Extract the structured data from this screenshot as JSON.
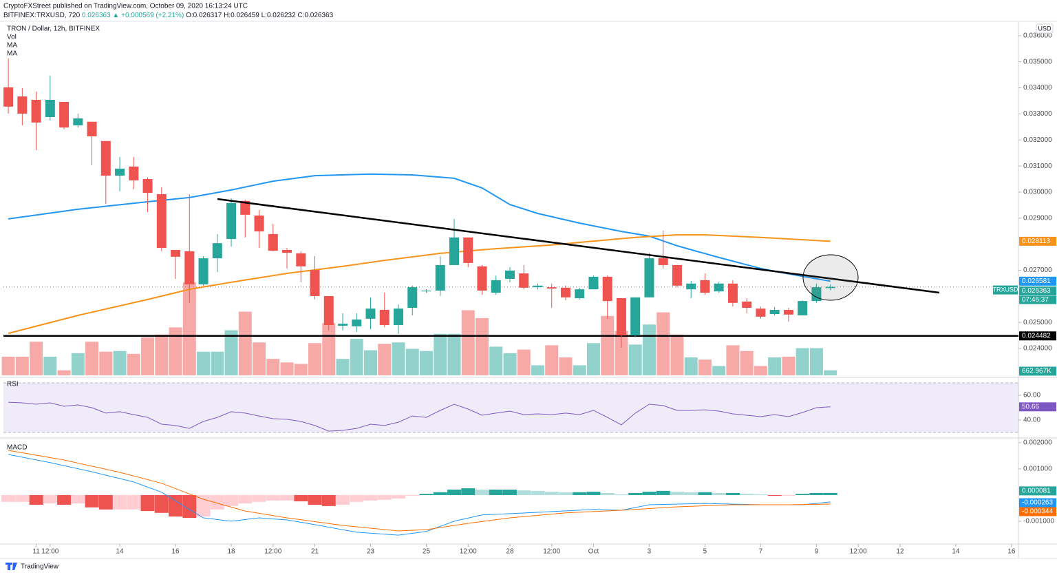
{
  "header": {
    "line1": "CryptoFXStreet published on TradingView.com, October 09, 2020 16:13:24 UTC",
    "symbol": "BITFINEX:TRXUSD, 720",
    "change": "▲ +0.000569 (+2.21%)",
    "ohlc_labels": [
      "O:",
      "H:",
      "L:",
      "C:"
    ]
  },
  "chart_data": {
    "type": "candlestick",
    "title": "TRON / Dollar, 12h, BITFINEX",
    "currency": "USD",
    "symbol_badge": "TRXUSD",
    "countdown": "07:46:37",
    "up_color": "#26a69a",
    "down_color": "#ef5350",
    "xlim": [
      -0.35,
      72.5
    ],
    "xticks": [
      {
        "value": 2,
        "label": "11"
      },
      {
        "value": 3,
        "label": "12:00"
      },
      {
        "value": 8,
        "label": "14"
      },
      {
        "value": 12,
        "label": "16"
      },
      {
        "value": 16,
        "label": "18"
      },
      {
        "value": 19,
        "label": "12:00"
      },
      {
        "value": 22,
        "label": "21"
      },
      {
        "value": 26,
        "label": "23"
      },
      {
        "value": 30,
        "label": "25"
      },
      {
        "value": 33,
        "label": "12:00"
      },
      {
        "value": 36,
        "label": "28"
      },
      {
        "value": 39,
        "label": "12:00"
      },
      {
        "value": 42,
        "label": "Oct"
      },
      {
        "value": 46,
        "label": "3"
      },
      {
        "value": 50,
        "label": "5"
      },
      {
        "value": 54,
        "label": "7"
      },
      {
        "value": 58,
        "label": "9"
      },
      {
        "value": 61,
        "label": "12:00"
      },
      {
        "value": 64,
        "label": "12"
      },
      {
        "value": 68,
        "label": "14"
      },
      {
        "value": 72,
        "label": "16"
      }
    ],
    "ylim": [
      0.02297,
      0.03642
    ],
    "yticks": [
      {
        "value": 0.036,
        "label": "0.036000"
      },
      {
        "value": 0.035,
        "label": "0.035000"
      },
      {
        "value": 0.034,
        "label": "0.034000"
      },
      {
        "value": 0.033,
        "label": "0.033000"
      },
      {
        "value": 0.032,
        "label": "0.032000"
      },
      {
        "value": 0.031,
        "label": "0.031000"
      },
      {
        "value": 0.03,
        "label": "0.030000"
      },
      {
        "value": 0.029,
        "label": "0.029000"
      },
      {
        "value": 0.027,
        "label": "0.027000"
      },
      {
        "value": 0.025,
        "label": "0.025000"
      },
      {
        "value": 0.024,
        "label": "0.024000"
      }
    ],
    "open": [
      0.03402,
      0.03367,
      0.03354,
      0.03288,
      0.03346,
      0.03256,
      0.0327,
      0.03196,
      0.03063,
      0.03098,
      0.0305,
      0.02992,
      0.02778,
      0.02773,
      0.02646,
      0.02746,
      0.0282,
      0.02966,
      0.0291,
      0.02839,
      0.02778,
      0.02765,
      0.02701,
      0.02601,
      0.02487,
      0.02485,
      0.02514,
      0.02548,
      0.0249,
      0.02556,
      0.02619,
      0.02622,
      0.0272,
      0.02826,
      0.02715,
      0.02614,
      0.02667,
      0.02688,
      0.02635,
      0.02635,
      0.02633,
      0.02593,
      0.02627,
      0.02675,
      0.02593,
      0.0245,
      0.02596,
      0.02746,
      0.0272,
      0.02627,
      0.02662,
      0.02619,
      0.02649,
      0.0258,
      0.02553,
      0.02532,
      0.02548,
      0.02527,
      0.02582,
      0.026317
    ],
    "high": [
      0.03513,
      0.03399,
      0.03386,
      0.03447,
      0.03346,
      0.03301,
      0.0327,
      0.03196,
      0.03135,
      0.03135,
      0.03056,
      0.03019,
      0.02778,
      0.02992,
      0.02754,
      0.02839,
      0.02976,
      0.02971,
      0.02931,
      0.02878,
      0.02786,
      0.02773,
      0.02754,
      0.02601,
      0.02535,
      0.02535,
      0.02596,
      0.02614,
      0.02569,
      0.02641,
      0.02627,
      0.02754,
      0.02897,
      0.02826,
      0.0272,
      0.0268,
      0.02712,
      0.0272,
      0.02649,
      0.02649,
      0.02641,
      0.02633,
      0.0268,
      0.0268,
      0.02593,
      0.02596,
      0.02767,
      0.02852,
      0.0272,
      0.02659,
      0.02688,
      0.02654,
      0.02662,
      0.02593,
      0.02561,
      0.02559,
      0.02556,
      0.02585,
      0.02649,
      0.026459
    ],
    "low": [
      0.03301,
      0.03256,
      0.03161,
      0.03275,
      0.03241,
      0.03248,
      0.03103,
      0.02955,
      0.03003,
      0.03011,
      0.02923,
      0.02773,
      0.02667,
      0.02575,
      0.02641,
      0.02693,
      0.02791,
      0.02826,
      0.02786,
      0.02773,
      0.02707,
      0.02654,
      0.02588,
      0.02469,
      0.02469,
      0.02463,
      0.02474,
      0.02482,
      0.02456,
      0.02527,
      0.02614,
      0.02601,
      0.0272,
      0.02712,
      0.02606,
      0.02606,
      0.02654,
      0.02627,
      0.02627,
      0.02556,
      0.02585,
      0.02588,
      0.02627,
      0.02514,
      0.02403,
      0.02442,
      0.02596,
      0.02707,
      0.02633,
      0.02593,
      0.02606,
      0.02614,
      0.02561,
      0.02535,
      0.02514,
      0.02527,
      0.02503,
      0.02527,
      0.02575,
      0.026232
    ],
    "close": [
      0.03328,
      0.03301,
      0.03267,
      0.03354,
      0.03248,
      0.03283,
      0.03214,
      0.03063,
      0.0309,
      0.03045,
      0.02997,
      0.02786,
      0.02752,
      0.02646,
      0.02746,
      0.02804,
      0.02958,
      0.02913,
      0.02849,
      0.02775,
      0.02767,
      0.02715,
      0.02601,
      0.0249,
      0.02495,
      0.02511,
      0.02553,
      0.0249,
      0.02553,
      0.02635,
      0.02622,
      0.0272,
      0.02826,
      0.02728,
      0.02622,
      0.02662,
      0.02699,
      0.02633,
      0.02641,
      0.0263,
      0.02596,
      0.02627,
      0.02675,
      0.02582,
      0.0245,
      0.02596,
      0.02746,
      0.0272,
      0.02641,
      0.02649,
      0.02614,
      0.02649,
      0.02575,
      0.02556,
      0.02522,
      0.02548,
      0.0253,
      0.02582,
      0.02635,
      0.026363
    ],
    "hline": {
      "value": 0.024482,
      "color": "#000000"
    },
    "ma": [
      {
        "name": "MA",
        "color": "#2196f3",
        "x": [
          0,
          5,
          10,
          13,
          16,
          19,
          22,
          26,
          29,
          32,
          34,
          36,
          38,
          41,
          44,
          46,
          48,
          51,
          54,
          56,
          59
        ],
        "values": [
          0.02897,
          0.02934,
          0.02963,
          0.02979,
          0.03008,
          0.03042,
          0.03063,
          0.03069,
          0.03066,
          0.03053,
          0.03016,
          0.02952,
          0.02918,
          0.02881,
          0.02849,
          0.02831,
          0.02794,
          0.02749,
          0.02707,
          0.02686,
          0.026581
        ]
      },
      {
        "name": "MA",
        "color": "#f7931a",
        "x": [
          0,
          5,
          10,
          13,
          16,
          20,
          24,
          27,
          31,
          35,
          39,
          42,
          45,
          48,
          50,
          54,
          59
        ],
        "values": [
          0.02458,
          0.02527,
          0.02588,
          0.02627,
          0.02654,
          0.02688,
          0.02715,
          0.02738,
          0.02765,
          0.02783,
          0.02797,
          0.02812,
          0.02826,
          0.02836,
          0.02836,
          0.02826,
          0.028113
        ]
      }
    ],
    "volume": {
      "name": "Vol",
      "values": [
        2470000,
        2470000,
        4465000,
        2470000,
        665000,
        2945000,
        4465000,
        3135000,
        3230000,
        2850000,
        5035000,
        5415000,
        6365000,
        12350000,
        3135000,
        3135000,
        5985000,
        8455000,
        4370000,
        2185000,
        1710000,
        1520000,
        4275000,
        6935000,
        2185000,
        4845000,
        3325000,
        4180000,
        4370000,
        3515000,
        3230000,
        5510000,
        5510000,
        8645000,
        7600000,
        3800000,
        2945000,
        3420000,
        1330000,
        3990000,
        2375000,
        1330000,
        4275000,
        7885000,
        5890000,
        4085000,
        6745000,
        8360000,
        5415000,
        2375000,
        2090000,
        1235000,
        3990000,
        3230000,
        1235000,
        2375000,
        2470000,
        3610000,
        3610000,
        662967
      ],
      "value_labels": [
        null,
        null,
        null,
        null,
        null,
        null,
        null,
        null,
        null,
        null,
        null,
        null,
        null,
        null,
        null,
        null,
        null,
        null,
        null,
        null,
        null,
        null,
        null,
        null,
        null,
        null,
        null,
        null,
        null,
        null,
        null,
        null,
        null,
        null,
        null,
        null,
        null,
        null,
        null,
        null,
        null,
        null,
        null,
        null,
        null,
        null,
        null,
        null,
        null,
        null,
        null,
        null,
        null,
        null,
        null,
        null,
        null,
        null,
        null,
        "662.967K"
      ]
    },
    "rsi": {
      "name": "RSI",
      "color": "#7e57c2",
      "ylim": [
        27.8,
        72.2
      ],
      "band": [
        30,
        70
      ],
      "yticks": [
        {
          "value": 60,
          "label": "60.00"
        },
        {
          "value": 40,
          "label": "40.00"
        }
      ],
      "values": [
        54.4,
        53.9,
        52.8,
        53.9,
        51.1,
        52.2,
        50,
        45.6,
        46.7,
        44.4,
        42.2,
        36.7,
        35.6,
        33.3,
        38.9,
        42.2,
        46.7,
        45.6,
        43.3,
        41.1,
        40.6,
        38.9,
        35.6,
        31.1,
        31.7,
        33.3,
        36.7,
        35.6,
        38.3,
        43.3,
        42.2,
        47.8,
        52.8,
        48.9,
        43.9,
        45.6,
        47.2,
        44.4,
        45,
        44.4,
        45.6,
        44.4,
        47.8,
        42.2,
        36.1,
        45.6,
        52.8,
        51.7,
        47.8,
        47.8,
        48.3,
        47.2,
        45,
        43.9,
        42.8,
        44.4,
        42.8,
        46.1,
        50,
        50.66
      ]
    },
    "macd": {
      "name": "MACD",
      "ylim": [
        -0.00187,
        0.00213
      ],
      "yticks": [
        {
          "value": 0.002,
          "label": "0.002000"
        },
        {
          "value": 0.001,
          "label": "0.001000"
        },
        {
          "value": -0.001,
          "label": "-0.001000"
        }
      ],
      "colors": {
        "up": "#26a69a",
        "up_weak": "#b2dfdb",
        "down": "#ef5350",
        "down_weak": "#ffcdd2"
      },
      "histogram": [
        -0.00026,
        -0.00026,
        -0.00037,
        -0.00032,
        -0.00037,
        -0.00032,
        -0.00047,
        -0.00055,
        -0.00055,
        -0.00055,
        -0.00061,
        -0.00068,
        -0.00082,
        -0.00087,
        -0.00082,
        -0.00055,
        -0.00042,
        -0.00032,
        -0.00026,
        -0.00021,
        -0.00021,
        -0.00024,
        -0.00037,
        -0.00042,
        -0.00037,
        -0.00026,
        -0.00021,
        -0.00018,
        -0.00013,
        -3e-05,
        5e-05,
        0.00011,
        0.00021,
        0.00026,
        0.00021,
        0.00021,
        0.00021,
        0.00018,
        0.00016,
        0.00013,
        0.00011,
        0.00011,
        0.00013,
        8e-05,
        3e-05,
        8e-05,
        0.00013,
        0.00016,
        0.00013,
        0.00011,
        0.00011,
        8e-05,
        8e-05,
        5e-05,
        3e-05,
        -3e-05,
        -3e-05,
        5e-05,
        8e-05,
        8.1e-05
      ],
      "macd": {
        "color": "#2196f3",
        "x": [
          0,
          3,
          6,
          9,
          11,
          13,
          14,
          16,
          18,
          20,
          22,
          25,
          28,
          30,
          32,
          34,
          38,
          42,
          44,
          46,
          50,
          54,
          57,
          59
        ],
        "values": [
          0.00155,
          0.00124,
          0.00089,
          0.0005,
          0.00011,
          -0.00055,
          -0.00087,
          -0.001,
          -0.00087,
          -0.00095,
          -0.00113,
          -0.00142,
          -0.00153,
          -0.00139,
          -0.001,
          -0.00076,
          -0.00066,
          -0.00055,
          -0.00058,
          -0.00037,
          -0.00032,
          -0.00037,
          -0.00037,
          -0.000263
        ]
      },
      "signal": {
        "color": "#ff6d00",
        "x": [
          0,
          4,
          8,
          11,
          14,
          17,
          20,
          24,
          28,
          30,
          33,
          36,
          40,
          44,
          48,
          52,
          56,
          59
        ],
        "values": [
          0.00171,
          0.00134,
          0.00087,
          0.00045,
          -0.00016,
          -0.00061,
          -0.00087,
          -0.00116,
          -0.00137,
          -0.00132,
          -0.00108,
          -0.00087,
          -0.00068,
          -0.00058,
          -0.00045,
          -0.00037,
          -0.00037,
          -0.000344
        ]
      }
    }
  },
  "footer": "TradingView"
}
